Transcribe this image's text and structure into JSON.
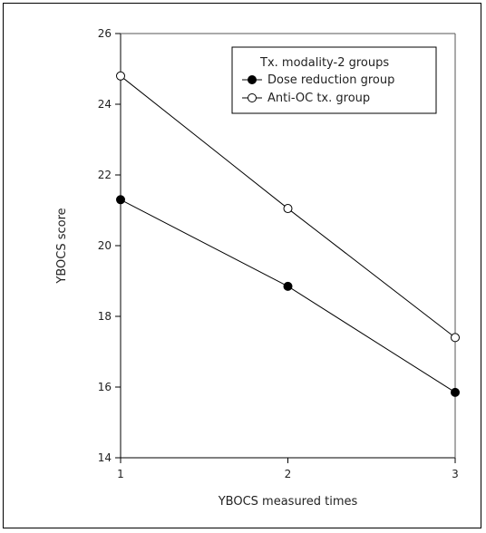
{
  "chart_data": {
    "type": "line",
    "title": "",
    "xlabel": "YBOCS measured times",
    "ylabel": "YBOCS score",
    "x": [
      1,
      2,
      3
    ],
    "xlim": [
      1,
      3
    ],
    "ylim": [
      14,
      26
    ],
    "yticks": [
      14,
      16,
      18,
      20,
      22,
      24,
      26
    ],
    "xticks": [
      1,
      2,
      3
    ],
    "grid": false,
    "legend": {
      "title": "Tx. modality-2 groups",
      "placement": "top-right"
    },
    "series": [
      {
        "name": "Dose reduction group",
        "marker": "filled-circle",
        "color": "#000000",
        "values": [
          21.3,
          18.85,
          15.85
        ]
      },
      {
        "name": "Anti-OC tx. group",
        "marker": "open-circle",
        "color": "#000000",
        "values": [
          24.8,
          21.05,
          17.4
        ]
      }
    ]
  }
}
